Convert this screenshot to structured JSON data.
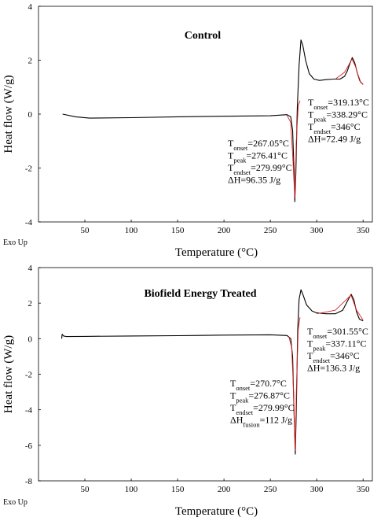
{
  "chart_data": [
    {
      "type": "line",
      "title": "Control",
      "xlabel": "Temperature (°C)",
      "ylabel": "Heat flow (W/g)",
      "exo_label": "Exo Up",
      "xlim": [
        0,
        360
      ],
      "ylim": [
        -4,
        4
      ],
      "xticks": [
        50,
        100,
        150,
        200,
        250,
        300,
        350
      ],
      "yticks": [
        -4,
        -2,
        0,
        2,
        4
      ],
      "grid": false,
      "series": [
        {
          "color": "#000000",
          "x": [
            26,
            40,
            55,
            100,
            150,
            200,
            250,
            268,
            272,
            274,
            275.5,
            276.4,
            277.5,
            279,
            281,
            283,
            285,
            288,
            292,
            297,
            303,
            310,
            318,
            325,
            330,
            333,
            336,
            338.3,
            341,
            344,
            347,
            350
          ],
          "y": [
            0.0,
            -0.1,
            -0.15,
            -0.13,
            -0.1,
            -0.08,
            -0.06,
            -0.02,
            -0.1,
            -0.6,
            -2.0,
            -3.25,
            -2.2,
            0.2,
            1.8,
            2.75,
            2.55,
            2.0,
            1.5,
            1.3,
            1.25,
            1.28,
            1.3,
            1.3,
            1.4,
            1.6,
            1.9,
            2.1,
            1.9,
            1.5,
            1.2,
            1.1
          ]
        },
        {
          "color": "#e02020",
          "x": [
            268,
            272,
            274,
            276.4,
            278,
            280,
            282
          ],
          "y": [
            -0.05,
            -0.3,
            -1.5,
            -3.1,
            -1.0,
            0.3,
            0.5
          ]
        },
        {
          "color": "#e02020",
          "x": [
            320,
            330,
            335,
            338,
            342,
            346,
            350
          ],
          "y": [
            1.3,
            1.55,
            1.85,
            2.05,
            1.75,
            1.25,
            1.1
          ]
        }
      ],
      "annotations": [
        {
          "lines": [
            {
              "sym": "T",
              "sub": "onset",
              "val": "=267.05°C"
            },
            {
              "sym": "T",
              "sub": "peak",
              "val": "=276.41°C"
            },
            {
              "sym": "T",
              "sub": "endset",
              "val": "=279.99°C"
            },
            {
              "sym": "ΔH",
              "sub": "",
              "val": "=96.35 J/g"
            }
          ]
        },
        {
          "lines": [
            {
              "sym": "T",
              "sub": "onset",
              "val": "=319.13°C"
            },
            {
              "sym": "T",
              "sub": "peak",
              "val": "=338.29°C"
            },
            {
              "sym": "T",
              "sub": "endset",
              "val": "=346°C"
            },
            {
              "sym": "ΔH",
              "sub": "",
              "val": "=72.49 J/g"
            }
          ]
        }
      ]
    },
    {
      "type": "line",
      "title": "Biofield Energy Treated",
      "xlabel": "Temperature (°C)",
      "ylabel": "Heat flow (W/g)",
      "exo_label": "Exo Up",
      "xlim": [
        0,
        360
      ],
      "ylim": [
        -8,
        4
      ],
      "xticks": [
        50,
        100,
        150,
        200,
        250,
        300,
        350
      ],
      "yticks": [
        -8,
        -6,
        -4,
        -2,
        0,
        2,
        4
      ],
      "grid": false,
      "series": [
        {
          "color": "#000000",
          "x": [
            25,
            25.5,
            27,
            30,
            50,
            100,
            150,
            200,
            250,
            268,
            272,
            274,
            275.5,
            276.9,
            278,
            279.5,
            281,
            283,
            285,
            289,
            295,
            300,
            310,
            320,
            328,
            332,
            335,
            337.1,
            340,
            343,
            346,
            350
          ],
          "y": [
            0.0,
            0.25,
            0.15,
            0.12,
            0.13,
            0.15,
            0.17,
            0.2,
            0.22,
            0.18,
            0.0,
            -1.0,
            -4.0,
            -6.5,
            -4.0,
            0.5,
            2.2,
            2.75,
            2.5,
            1.9,
            1.55,
            1.45,
            1.4,
            1.4,
            1.6,
            2.0,
            2.3,
            2.5,
            2.2,
            1.5,
            1.1,
            1.0
          ]
        },
        {
          "color": "#e02020",
          "x": [
            270,
            273,
            275,
            276.9,
            278,
            280,
            282
          ],
          "y": [
            0.1,
            -0.5,
            -3.0,
            -6.3,
            -3.0,
            0.5,
            1.2
          ]
        },
        {
          "color": "#e02020",
          "x": [
            300,
            320,
            330,
            337,
            343,
            350
          ],
          "y": [
            1.4,
            1.6,
            2.1,
            2.45,
            1.6,
            1.05
          ]
        }
      ],
      "annotations": [
        {
          "lines": [
            {
              "sym": "T",
              "sub": "onset",
              "val": "=270.7°C"
            },
            {
              "sym": "T",
              "sub": "peak",
              "val": "=276.87°C"
            },
            {
              "sym": "T",
              "sub": "endset",
              "val": "=279.99°C"
            },
            {
              "sym": "ΔH",
              "sub": "fusion",
              "val": "=112 J/g"
            }
          ]
        },
        {
          "lines": [
            {
              "sym": "T",
              "sub": "onset",
              "val": "=301.55°C"
            },
            {
              "sym": "T",
              "sub": "peak",
              "val": "=337.11°C"
            },
            {
              "sym": "T",
              "sub": "endset",
              "val": "=346°C"
            },
            {
              "sym": "ΔH",
              "sub": "",
              "val": "=136.3 J/g"
            }
          ]
        }
      ]
    }
  ]
}
